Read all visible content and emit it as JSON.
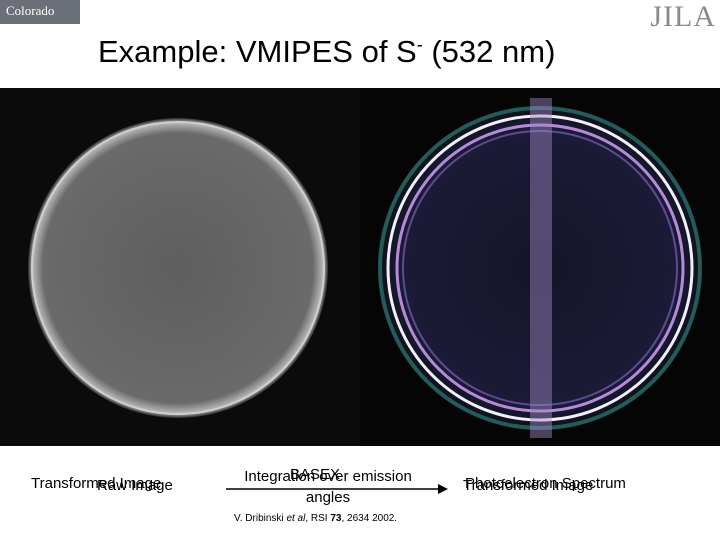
{
  "header": {
    "logo_left": "Colorado",
    "logo_right": "JILA",
    "title": "Example: VMIPES of S",
    "title_superscript": "-",
    "title_suffix": "(532 nm)"
  },
  "labels": {
    "left": [
      "Transformed Image",
      "Raw Image"
    ],
    "middle_top": "BASEX",
    "middle": [
      "Integration over emission",
      "angles"
    ],
    "right": [
      "Photoelectron Spectrum",
      "Transformed Image"
    ]
  },
  "citation": [
    "V. Dribinski ",
    "et al",
    ", RSI ",
    "73",
    ", 2634 2002."
  ]
}
